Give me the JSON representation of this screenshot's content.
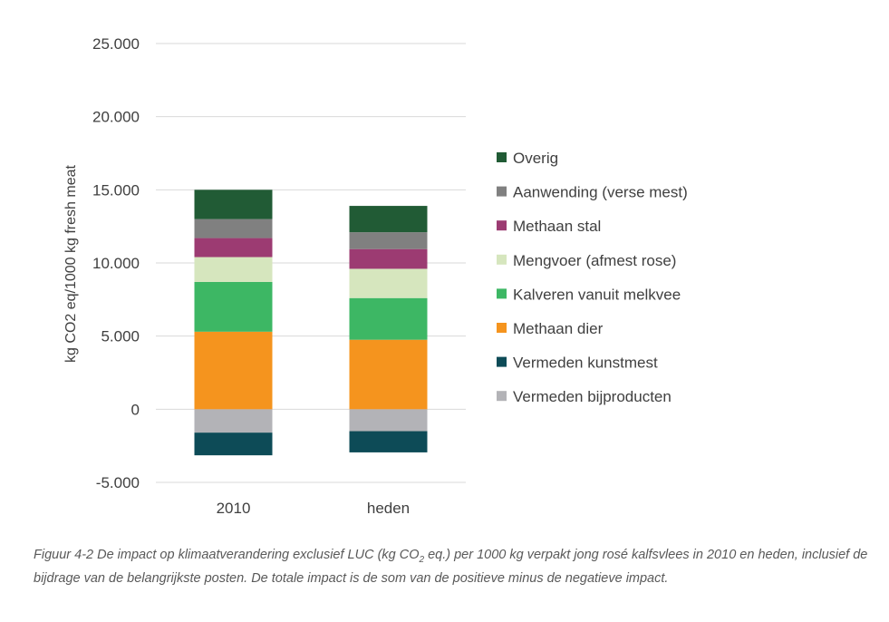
{
  "chart_data": {
    "type": "bar",
    "stacked": true,
    "categories": [
      "2010",
      "heden"
    ],
    "ylabel": "kg CO2 eq/1000 kg fresh meat",
    "ylim": [
      -5000,
      25000
    ],
    "yticks": [
      -5000,
      0,
      5000,
      10000,
      15000,
      20000,
      25000
    ],
    "ytick_labels": [
      "-5.000",
      "0",
      "5.000",
      "10.000",
      "15.000",
      "20.000",
      "25.000"
    ],
    "grid": true,
    "legend_position": "right",
    "series": [
      {
        "name": "Vermeden bijproducten",
        "color": "#b3b3b7",
        "values": [
          -1600,
          -1500
        ]
      },
      {
        "name": "Vermeden kunstmest",
        "color": "#0d4b57",
        "values": [
          -1550,
          -1450
        ]
      },
      {
        "name": "Methaan dier",
        "color": "#f5941e",
        "values": [
          5300,
          4750
        ]
      },
      {
        "name": "Kalveren vanuit melkvee",
        "color": "#3db764",
        "values": [
          3400,
          2850
        ]
      },
      {
        "name": "Mengvoer (afmest rose)",
        "color": "#d6e6be",
        "values": [
          1700,
          2000
        ]
      },
      {
        "name": "Methaan stal",
        "color": "#9c3b72",
        "values": [
          1300,
          1350
        ]
      },
      {
        "name": "Aanwending (verse mest)",
        "color": "#808080",
        "values": [
          1300,
          1150
        ]
      },
      {
        "name": "Overig",
        "color": "#215b35",
        "values": [
          2000,
          1800
        ]
      }
    ],
    "legend_order": [
      "Overig",
      "Aanwending (verse mest)",
      "Methaan stal",
      "Mengvoer (afmest rose)",
      "Kalveren vanuit melkvee",
      "Methaan dier",
      "Vermeden kunstmest",
      "Vermeden bijproducten"
    ]
  },
  "caption": {
    "part1": "Figuur 4-2 De impact op klimaatverandering exclusief LUC (kg CO",
    "sub": "2",
    "part2": " eq.) per 1000 kg verpakt jong rosé kalfsvlees in 2010 en heden, inclusief de bijdrage van de belangrijkste posten. De totale impact is de som van de positieve minus de negatieve impact."
  }
}
